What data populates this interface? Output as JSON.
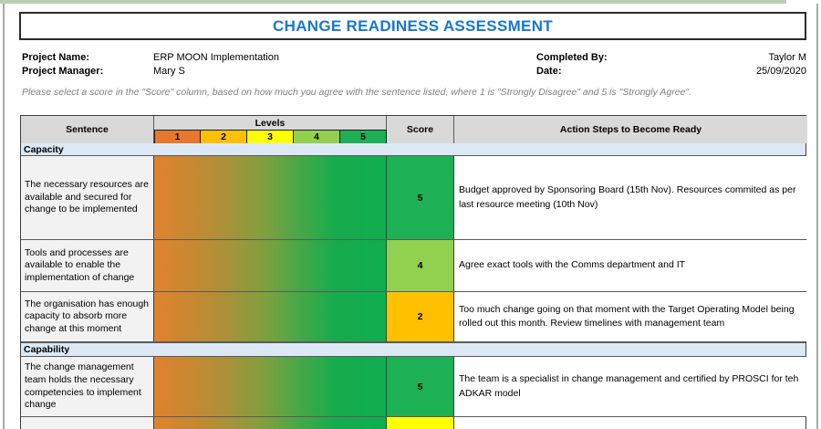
{
  "chrome": {
    "top_strip_color": "#b9cdb4"
  },
  "title": "CHANGE READINESS ASSESSMENT",
  "info": {
    "project_name_label": "Project Name:",
    "project_name_value": "ERP MOON Implementation",
    "project_manager_label": "Project Manager:",
    "project_manager_value": "Mary S",
    "completed_by_label": "Completed By:",
    "completed_by_value": "Taylor M",
    "date_label": "Date:",
    "date_value": "25/09/2020"
  },
  "instruction": "Please select a score in the \"Score\" column, based on how much you agree with the sentence listed, where 1 is \"Strongly Disagree\" and 5 is \"Strongly Agree\".",
  "table": {
    "headers": {
      "sentence": "Sentence",
      "levels": "Levels",
      "score": "Score",
      "action": "Action Steps to Become Ready"
    },
    "level_scale": [
      {
        "label": "1",
        "color": "#E8772E"
      },
      {
        "label": "2",
        "color": "#FFC000"
      },
      {
        "label": "3",
        "color": "#FFFF00"
      },
      {
        "label": "4",
        "color": "#92D050"
      },
      {
        "label": "5",
        "color": "#1DB054"
      }
    ],
    "sections": [
      {
        "name": "Capacity",
        "rows": [
          {
            "sentence": "The necessary resources are available and secured for change to be implemented",
            "score": "5",
            "score_color": "#1DB054",
            "action": "Budget approved by Sponsoring Board (15th Nov). Resources commited as per last resource meeting (10th Nov)"
          },
          {
            "sentence": "Tools and processes are available to enable the implementation of change",
            "score": "4",
            "score_color": "#92D050",
            "action": "Agree exact tools with the Comms department and IT"
          },
          {
            "sentence": "The organisation has enough capacity to absorb more change at this moment",
            "score": "2",
            "score_color": "#FFC000",
            "action": "Too much change going on that moment with the Target Operating Model being rolled out this month. Review timelines with management team"
          }
        ]
      },
      {
        "name": "Capability",
        "rows": [
          {
            "sentence": "The change management team holds the necessary competencies to implement change",
            "score": "5",
            "score_color": "#1DB054",
            "action": "The team is a specialist in change management and certified by PROSCI for teh ADKAR model"
          },
          {
            "sentence": "",
            "score": "",
            "score_color": "#FFFF00",
            "action": ""
          }
        ]
      }
    ]
  },
  "colors": {
    "title_blue": "#1777D2",
    "section_band_blue": "#DCE9F5",
    "header_gray": "#D9D9D9",
    "sentence_bg": "#F2F2F2",
    "gradient_start": "#E2812E",
    "gradient_end": "#0FAE4E"
  }
}
